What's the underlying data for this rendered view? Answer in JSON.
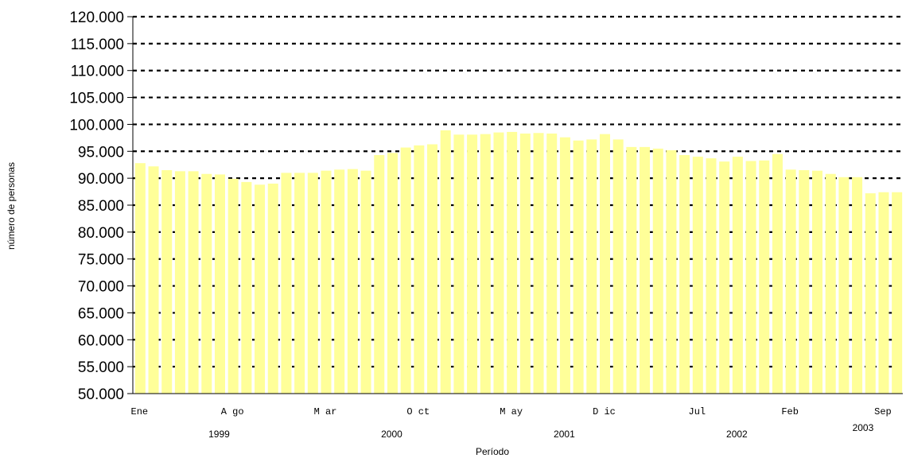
{
  "chart_data": {
    "type": "bar",
    "ylabel": "número de personas",
    "xlabel": "Período",
    "ylim": [
      50000,
      120000
    ],
    "yticks": [
      "50.000",
      "55.000",
      "60.000",
      "65.000",
      "70.000",
      "75.000",
      "80.000",
      "85.000",
      "90.000",
      "95.000",
      "100.000",
      "105.000",
      "110.000",
      "115.000",
      "120.000"
    ],
    "grid": "horizontal dashed",
    "bar_color": "#FFFF99",
    "x_tick_labels": [
      {
        "index": 0,
        "label": "Ene"
      },
      {
        "index": 7,
        "label": "A go"
      },
      {
        "index": 14,
        "label": "M ar"
      },
      {
        "index": 21,
        "label": "O ct"
      },
      {
        "index": 28,
        "label": "M ay"
      },
      {
        "index": 35,
        "label": "D ic"
      },
      {
        "index": 42,
        "label": "Jul"
      },
      {
        "index": 49,
        "label": "Feb"
      },
      {
        "index": 56,
        "label": "Sep"
      }
    ],
    "year_labels": [
      {
        "index": 6,
        "label": "1999"
      },
      {
        "index": 19,
        "label": "2000"
      },
      {
        "index": 32,
        "label": "2001"
      },
      {
        "index": 45,
        "label": "2002"
      },
      {
        "index": 54.5,
        "label": "2003"
      }
    ],
    "values": [
      92800,
      92200,
      91500,
      91300,
      91300,
      90800,
      90700,
      89900,
      89300,
      88800,
      89000,
      91000,
      91000,
      91000,
      91400,
      91600,
      91700,
      91400,
      94300,
      94700,
      95700,
      96100,
      96300,
      98900,
      98100,
      98100,
      98200,
      98500,
      98600,
      98300,
      98400,
      98300,
      97600,
      97000,
      97200,
      98200,
      97200,
      95800,
      95800,
      95500,
      95200,
      94300,
      94000,
      93700,
      93100,
      94000,
      93200,
      93300,
      94500,
      91600,
      91500,
      91400,
      90800,
      90200,
      90200,
      87200,
      87400,
      87400
    ]
  }
}
